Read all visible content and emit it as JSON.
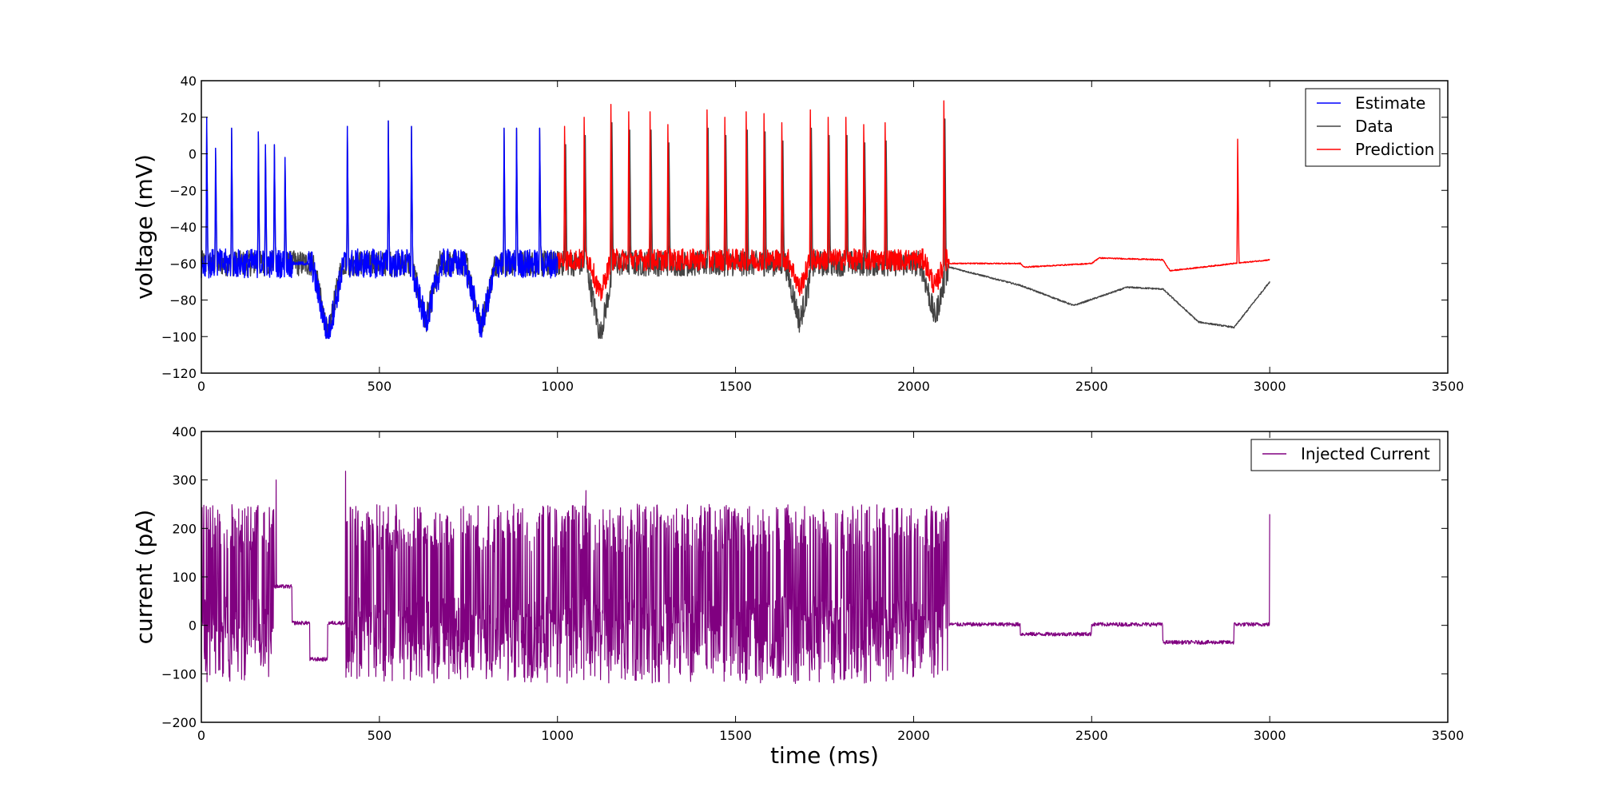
{
  "chart_data": [
    {
      "type": "line",
      "ylabel": "voltage (mV)",
      "xlabel": "",
      "xlim": [
        0,
        3500
      ],
      "ylim": [
        -120,
        40
      ],
      "xticks": [
        0,
        500,
        1000,
        1500,
        2000,
        2500,
        3000,
        3500
      ],
      "yticks": [
        -120,
        -100,
        -80,
        -60,
        -40,
        -20,
        0,
        20,
        40
      ],
      "legend_position": "top-right",
      "series": [
        {
          "name": "Estimate",
          "color": "#0000ff",
          "x_range": [
            0,
            1000
          ],
          "resting_mV": -60,
          "spike_peaks_mV": [
            [
              15,
              20
            ],
            [
              40,
              3
            ],
            [
              85,
              14
            ],
            [
              160,
              12
            ],
            [
              180,
              5
            ],
            [
              205,
              5
            ],
            [
              235,
              -2
            ],
            [
              410,
              15
            ],
            [
              525,
              18
            ],
            [
              590,
              15
            ],
            [
              850,
              14
            ],
            [
              885,
              14
            ],
            [
              950,
              14
            ]
          ],
          "troughs_mV": [
            [
              355,
              -100
            ],
            [
              630,
              -92
            ],
            [
              785,
              -95
            ]
          ]
        },
        {
          "name": "Data",
          "color": "#444444",
          "x_range": [
            0,
            3000
          ],
          "troughs_mV": [
            [
              1120,
              -100
            ],
            [
              1680,
              -92
            ],
            [
              2060,
              -90
            ]
          ],
          "tail_points": [
            [
              2100,
              -62
            ],
            [
              2300,
              -72
            ],
            [
              2450,
              -83
            ],
            [
              2600,
              -73
            ],
            [
              2700,
              -74
            ],
            [
              2800,
              -92
            ],
            [
              2900,
              -95
            ],
            [
              3000,
              -70
            ]
          ]
        },
        {
          "name": "Prediction",
          "color": "#ff0000",
          "x_range": [
            1000,
            3000
          ],
          "spike_peaks_mV": [
            [
              1020,
              15
            ],
            [
              1075,
              20
            ],
            [
              1150,
              27
            ],
            [
              1200,
              23
            ],
            [
              1260,
              23
            ],
            [
              1310,
              16
            ],
            [
              1420,
              24
            ],
            [
              1470,
              20
            ],
            [
              1530,
              23
            ],
            [
              1580,
              22
            ],
            [
              1630,
              17
            ],
            [
              1710,
              24
            ],
            [
              1760,
              20
            ],
            [
              1810,
              20
            ],
            [
              1860,
              16
            ],
            [
              1920,
              17
            ],
            [
              2085,
              29
            ],
            [
              2910,
              8
            ]
          ],
          "tail_points": [
            [
              2100,
              -60
            ],
            [
              2300,
              -60
            ],
            [
              2310,
              -62
            ],
            [
              2500,
              -60
            ],
            [
              2520,
              -57
            ],
            [
              2700,
              -58
            ],
            [
              2720,
              -64
            ],
            [
              2900,
              -60
            ],
            [
              3000,
              -58
            ]
          ]
        }
      ]
    },
    {
      "type": "line",
      "ylabel": "current (pA)",
      "xlabel": "time (ms)",
      "xlim": [
        0,
        3500
      ],
      "ylim": [
        -200,
        400
      ],
      "xticks": [
        0,
        500,
        1000,
        1500,
        2000,
        2500,
        3000,
        3500
      ],
      "yticks": [
        -200,
        -100,
        0,
        100,
        200,
        300,
        400
      ],
      "legend_position": "top-right",
      "series": [
        {
          "name": "Injected Current",
          "color": "#800080",
          "x_range": [
            0,
            3000
          ],
          "pulse_max_pA": 250,
          "pulse_min_pA": -100,
          "steps_pA": [
            [
              205,
              255,
              80
            ],
            [
              255,
              305,
              5
            ],
            [
              305,
              355,
              -70
            ],
            [
              355,
              405,
              5
            ],
            [
              2100,
              2300,
              2
            ],
            [
              2300,
              2500,
              -18
            ],
            [
              2500,
              2700,
              2
            ],
            [
              2700,
              2900,
              -35
            ],
            [
              2900,
              3000,
              2
            ]
          ],
          "pulse_segments": [
            [
              0,
              205
            ],
            [
              405,
              2100
            ]
          ],
          "peak_pA": [
            [
              210,
              300
            ],
            [
              405,
              318
            ],
            [
              1080,
              278
            ]
          ]
        }
      ]
    }
  ]
}
